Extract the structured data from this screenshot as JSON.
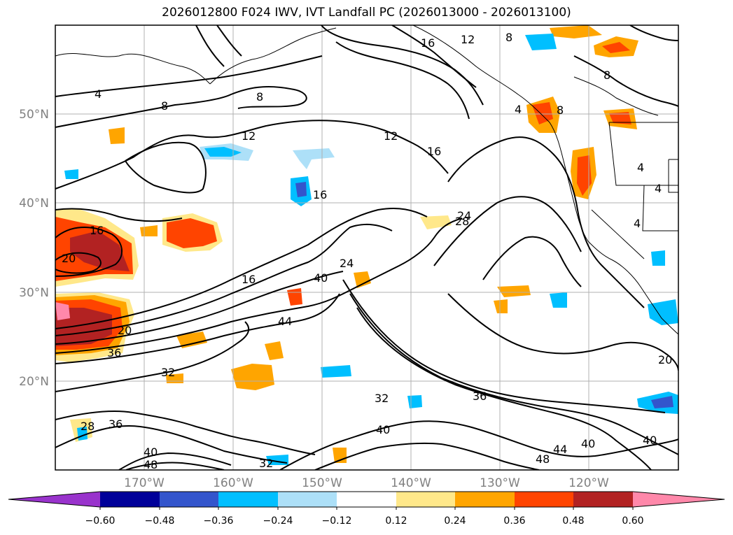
{
  "title": "2026012800 F024 IWV, IVT Landfall PC (2026013000 - 2026013100)",
  "lat_labels": [
    "50°N",
    "40°N",
    "30°N",
    "20°N"
  ],
  "lon_labels": [
    "170°W",
    "160°W",
    "150°W",
    "140°W",
    "130°W",
    "120°W"
  ],
  "colorbar": {
    "colors": [
      "#9933cc",
      "#000099",
      "#3355cc",
      "#00bfff",
      "#ade0f8",
      "#ffffff",
      "#ffe88a",
      "#ffa500",
      "#ff4400",
      "#b22222",
      "#ff88aa"
    ],
    "tick_labels": [
      "−0.60",
      "−0.48",
      "−0.36",
      "−0.24",
      "−0.12",
      "0.12",
      "0.24",
      "0.36",
      "0.48",
      "0.60"
    ]
  },
  "contour_labels": [
    "4",
    "4",
    "4",
    "4",
    "4",
    "8",
    "8",
    "8",
    "8",
    "8",
    "12",
    "12",
    "12",
    "16",
    "16",
    "16",
    "16",
    "16",
    "20",
    "20",
    "20",
    "24",
    "24",
    "28",
    "28",
    "32",
    "32",
    "32",
    "36",
    "36",
    "36",
    "40",
    "40",
    "40",
    "40",
    "40",
    "44",
    "44",
    "48",
    "48"
  ]
}
